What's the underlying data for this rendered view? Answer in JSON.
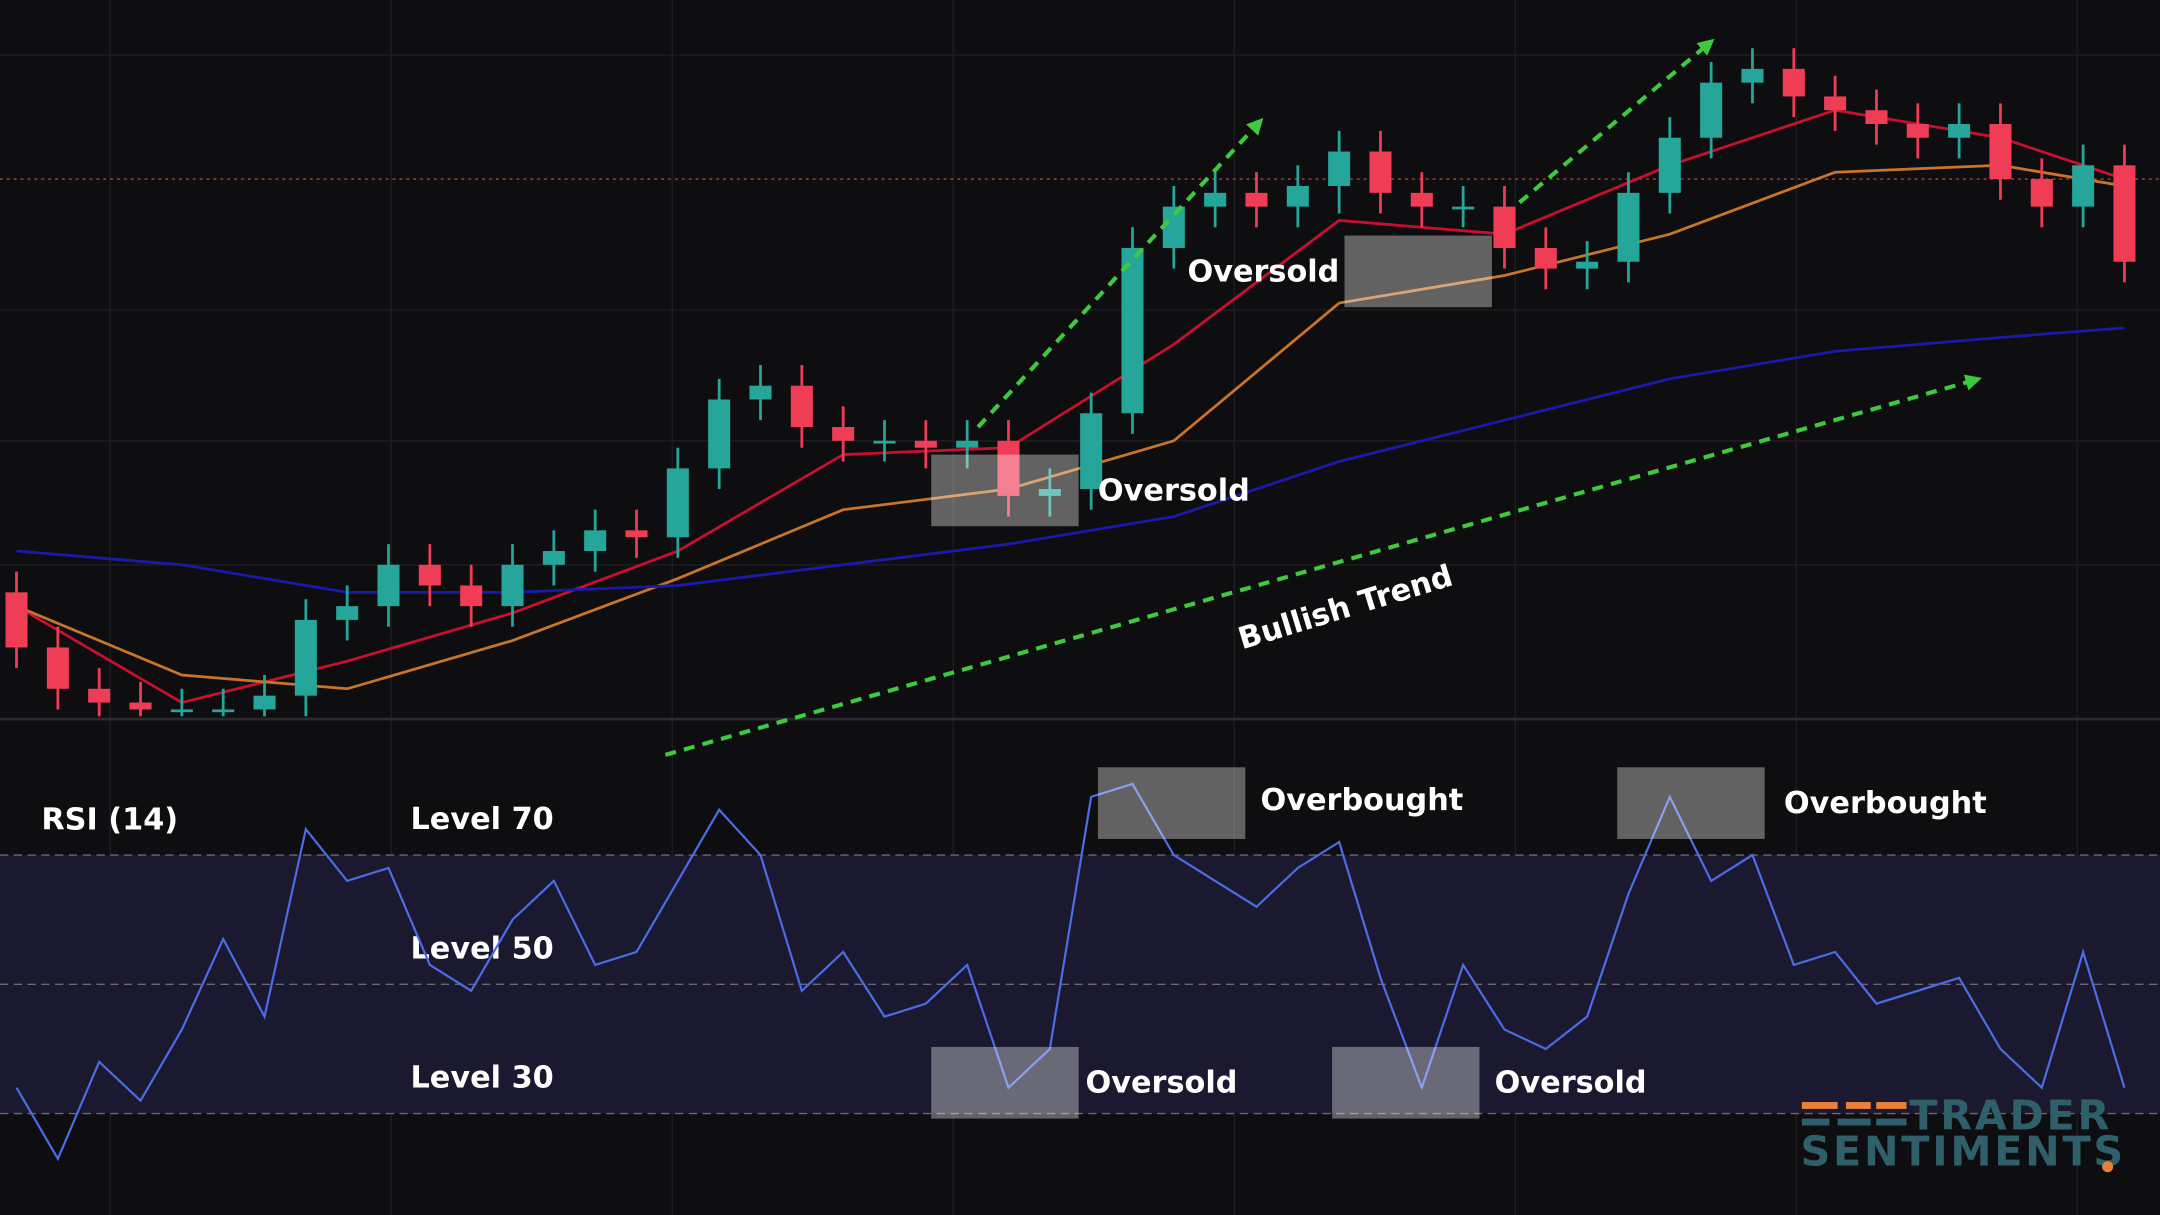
{
  "chart_data": [
    {
      "type": "candlestick",
      "open": [
        90,
        50,
        20,
        10,
        5,
        5,
        5,
        15,
        70,
        80,
        110,
        95,
        80,
        110,
        120,
        135,
        130,
        180,
        230,
        240,
        210,
        200,
        200,
        195,
        200,
        160,
        165,
        220,
        340,
        370,
        380,
        370,
        385,
        410,
        380,
        370,
        370,
        340,
        325,
        330,
        380,
        420,
        460,
        470,
        450,
        440,
        430,
        420,
        430,
        390,
        370,
        400
      ],
      "high": [
        105,
        65,
        35,
        25,
        20,
        20,
        30,
        85,
        95,
        125,
        125,
        110,
        125,
        135,
        150,
        150,
        195,
        245,
        255,
        255,
        225,
        215,
        215,
        215,
        215,
        180,
        235,
        355,
        385,
        395,
        395,
        400,
        425,
        425,
        395,
        385,
        385,
        355,
        345,
        395,
        435,
        475,
        485,
        485,
        465,
        455,
        445,
        445,
        445,
        405,
        415,
        415
      ],
      "low": [
        35,
        5,
        -5,
        -10,
        -10,
        -10,
        -10,
        0,
        55,
        65,
        80,
        65,
        65,
        95,
        105,
        115,
        115,
        165,
        215,
        195,
        185,
        185,
        180,
        180,
        145,
        145,
        150,
        205,
        325,
        355,
        355,
        355,
        365,
        365,
        355,
        355,
        325,
        310,
        310,
        315,
        365,
        405,
        445,
        435,
        425,
        415,
        405,
        405,
        375,
        355,
        355,
        315
      ],
      "close": [
        50,
        20,
        10,
        5,
        5,
        5,
        15,
        70,
        80,
        110,
        95,
        80,
        110,
        120,
        135,
        130,
        180,
        230,
        240,
        210,
        200,
        200,
        195,
        200,
        160,
        165,
        220,
        340,
        370,
        380,
        370,
        385,
        410,
        380,
        370,
        370,
        340,
        325,
        330,
        380,
        420,
        460,
        470,
        450,
        440,
        430,
        420,
        430,
        390,
        370,
        400,
        330
      ],
      "up_color": "#26a69a",
      "down_color": "#ef3d56",
      "lines": [
        {
          "color": "#c8102e",
          "x": [
            0,
            4,
            8,
            12,
            16,
            20,
            24,
            28,
            32,
            36,
            40,
            44,
            48,
            51
          ],
          "values": [
            80,
            10,
            40,
            75,
            120,
            190,
            195,
            270,
            360,
            350,
            400,
            440,
            420,
            390
          ]
        },
        {
          "color": "#c8742a",
          "x": [
            0,
            4,
            8,
            12,
            16,
            20,
            24,
            28,
            32,
            36,
            40,
            44,
            48,
            51
          ],
          "values": [
            80,
            30,
            20,
            55,
            100,
            150,
            165,
            200,
            300,
            320,
            350,
            395,
            400,
            385
          ]
        },
        {
          "color": "#1a1aa8",
          "x": [
            0,
            4,
            8,
            12,
            16,
            20,
            24,
            28,
            32,
            36,
            40,
            44,
            48,
            51
          ],
          "values": [
            120,
            110,
            90,
            90,
            95,
            110,
            125,
            145,
            185,
            215,
            245,
            265,
            275,
            282
          ]
        }
      ],
      "price_line": 390,
      "xlim": [
        -0.4,
        51.86
      ],
      "ylim": [
        0,
        520
      ],
      "annotations": [
        "Oversold",
        "Oversold",
        "Bullish Trend"
      ]
    },
    {
      "type": "line",
      "title": "RSI (14)",
      "values": [
        34,
        23,
        38,
        32,
        43,
        57,
        45,
        74,
        66,
        68,
        53,
        49,
        60,
        66,
        53,
        55,
        66,
        77,
        70,
        49,
        55,
        45,
        47,
        53,
        34,
        40,
        79,
        81,
        70,
        66,
        62,
        68,
        72,
        51,
        34,
        53,
        43,
        40,
        45,
        64,
        79,
        66,
        70,
        53,
        55,
        47,
        49,
        51,
        40,
        34,
        55,
        34
      ],
      "color": "#4a6de5",
      "xlim": [
        -0.4,
        51.86
      ],
      "ylim": [
        19,
        84
      ],
      "yticks": [
        {
          "value": 30,
          "label": "Level 30"
        },
        {
          "value": 50,
          "label": "Level 50"
        },
        {
          "value": 70,
          "label": "Level 70"
        }
      ],
      "annotations": [
        "Overbought",
        "Overbought",
        "Oversold",
        "Oversold"
      ]
    }
  ],
  "logo": {
    "line1": "TRADER",
    "line2": "SENTIMENTS"
  }
}
